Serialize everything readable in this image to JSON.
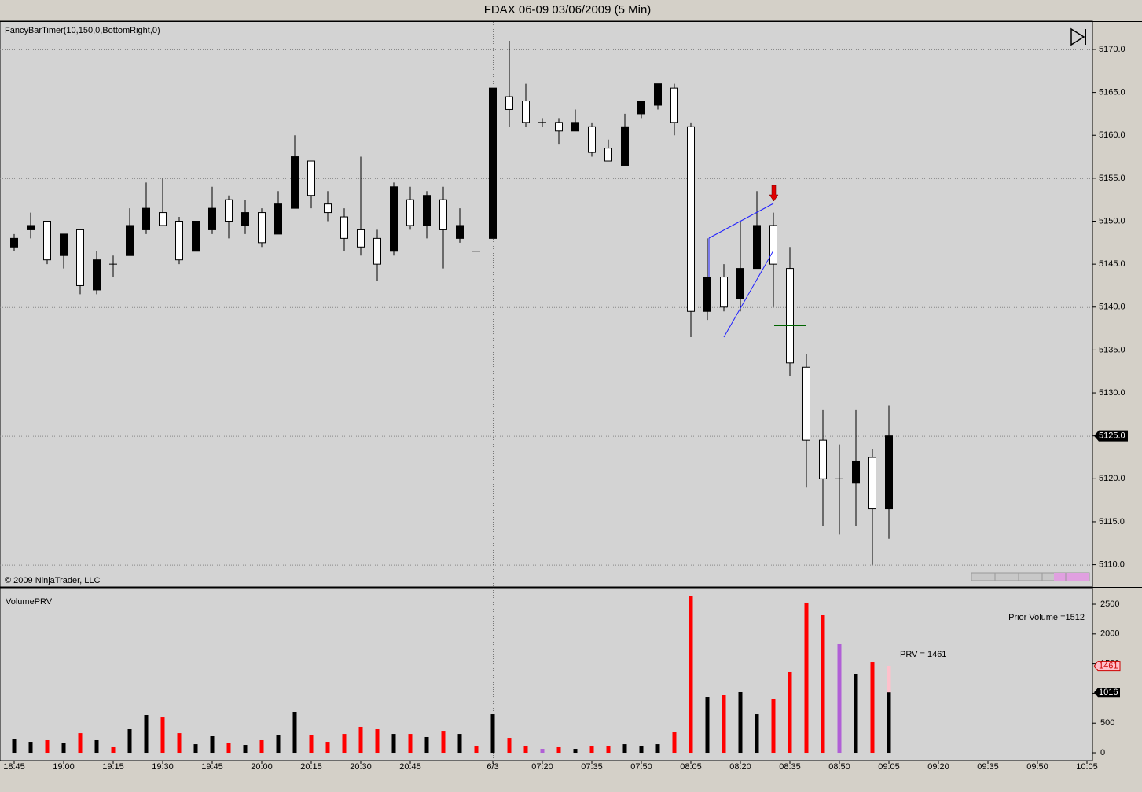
{
  "title": "FDAX 06-09  03/06/2009 (5 Min)",
  "indicator_label": "FancyBarTimer(10,150,0,BottomRight,0)",
  "copyright": "© 2009 NinjaTrader, LLC",
  "chart_data": [
    {
      "type": "candlestick",
      "categories": [
        "18:45",
        null,
        null,
        "19:00",
        null,
        null,
        "19:15",
        null,
        null,
        "19:30",
        null,
        null,
        "19:45",
        null,
        null,
        "20:00",
        null,
        null,
        "20:15",
        null,
        null,
        "20:30",
        null,
        null,
        "20:45",
        null,
        null,
        null,
        null,
        "6/3",
        null,
        null,
        "07:20",
        null,
        null,
        "07:35",
        null,
        null,
        "07:50",
        null,
        null,
        "08:05",
        null,
        null,
        "08:20",
        null,
        null,
        "08:35",
        null,
        null,
        "08:50",
        null,
        null,
        "09:05",
        null,
        null,
        "09:20",
        null,
        null,
        "09:35",
        null,
        null,
        "09:50",
        null,
        null,
        "10:05"
      ],
      "open": [
        5147,
        5149,
        5150,
        5146,
        5149,
        5142,
        5145,
        5146,
        5149,
        5151,
        5150,
        5146.5,
        5149,
        5152.5,
        5149.5,
        5151,
        5148.5,
        5151.5,
        5157,
        5152,
        5150.5,
        5149,
        5148,
        5146.5,
        5152.5,
        5149.5,
        5152.5,
        5148,
        5146.5,
        5148,
        5164.5,
        5164,
        5161.5,
        5161.5,
        5160.5,
        5161,
        5158.5,
        5156.5,
        5162.5,
        5163.5,
        5165.5,
        5161,
        5139.5,
        5143.5,
        5141,
        5144.5,
        5149.5,
        5144.5,
        5133,
        5124.5,
        5120,
        5119.5,
        5122.5,
        5116.5,
        null,
        null,
        null,
        null,
        null,
        null,
        null,
        null,
        null,
        null,
        null,
        null
      ],
      "high": [
        5148.5,
        5151,
        5150,
        5148.5,
        5149,
        5146.5,
        5146,
        5151.5,
        5154.5,
        5155,
        5150.5,
        5150,
        5154,
        5153,
        5152.5,
        5151.5,
        5153.5,
        5160,
        5157,
        5153.5,
        5151.5,
        5157.5,
        5149,
        5154.5,
        5154,
        5153.5,
        5154,
        5151.5,
        5146.5,
        5165.5,
        5171,
        5166,
        5162,
        5162,
        5163,
        5161.5,
        5159.5,
        5162.5,
        5164,
        5166,
        5166,
        5161.5,
        5148,
        5145,
        5150,
        5153.5,
        5151,
        5147,
        5134.5,
        5128,
        5124,
        5128,
        5123.5,
        5128.5,
        null,
        null,
        null,
        null,
        null,
        null,
        null,
        null,
        null,
        null,
        null,
        null
      ],
      "low": [
        5146.5,
        5148,
        5145,
        5144.5,
        5141.5,
        5141.5,
        5143.5,
        5146,
        5148.5,
        5149.5,
        5145,
        5146.5,
        5148.5,
        5148,
        5148.5,
        5147,
        5148.5,
        5151.5,
        5151.5,
        5150,
        5146.5,
        5146,
        5143,
        5146,
        5149,
        5148,
        5144.5,
        5147.5,
        5146.5,
        5148,
        5161,
        5161,
        5161,
        5159,
        5160.5,
        5157.5,
        5157,
        5156.5,
        5162,
        5163,
        5160,
        5136.5,
        5138.5,
        5139.5,
        5139.5,
        5144.5,
        5140,
        5132,
        5119,
        5114.5,
        5113.5,
        5114.5,
        5110,
        5113,
        null,
        null,
        null,
        null,
        null,
        null,
        null,
        null,
        null,
        null,
        null,
        null
      ],
      "close": [
        5148,
        5149.5,
        5145.5,
        5148.5,
        5142.5,
        5145.5,
        5145,
        5149.5,
        5151.5,
        5149.5,
        5145.5,
        5150,
        5151.5,
        5150,
        5151,
        5147.5,
        5152,
        5157.5,
        5153,
        5151,
        5148,
        5147,
        5145,
        5154,
        5149.5,
        5153,
        5149,
        5149.5,
        5146.5,
        5165.5,
        5163,
        5161.5,
        5161.5,
        5160.5,
        5161.5,
        5158,
        5157,
        5161,
        5164,
        5166,
        5161.5,
        5139.5,
        5143.5,
        5140,
        5144.5,
        5149.5,
        5145,
        5133.5,
        5124.5,
        5120,
        5120,
        5122,
        5116.5,
        5125,
        null,
        null,
        null,
        null,
        null,
        null,
        null,
        null,
        null,
        null,
        null,
        null
      ],
      "up_color": "#000000",
      "down_color": "#ffffff",
      "ylim": [
        5107.4,
        5173.2
      ],
      "yticks": [
        {
          "value": 5110,
          "label": "5110.0"
        },
        {
          "value": 5115,
          "label": "5115.0"
        },
        {
          "value": 5120,
          "label": "5120.0"
        },
        {
          "value": 5125,
          "label": "5125.0"
        },
        {
          "value": 5130,
          "label": "5130.0"
        },
        {
          "value": 5135,
          "label": "5135.0"
        },
        {
          "value": 5140,
          "label": "5140.0"
        },
        {
          "value": 5145,
          "label": "5145.0"
        },
        {
          "value": 5150,
          "label": "5150.0"
        },
        {
          "value": 5155,
          "label": "5155.0"
        },
        {
          "value": 5160,
          "label": "5160.0"
        },
        {
          "value": 5165,
          "label": "5165.0"
        },
        {
          "value": 5170,
          "label": "5170.0"
        }
      ],
      "last_price": {
        "value": 5125,
        "label": "5125.0"
      },
      "grid": true
    },
    {
      "type": "bar",
      "title": "VolumePRV",
      "values": [
        238,
        185,
        212,
        172,
        330,
        212,
        93,
        397,
        635,
        595,
        330,
        145,
        278,
        172,
        132,
        212,
        291,
        688,
        304,
        185,
        317,
        437,
        397,
        317,
        317,
        265,
        370,
        317,
        106,
        648,
        251,
        106,
        66,
        93,
        66,
        106,
        106,
        145,
        119,
        145,
        344,
        2633,
        939,
        966,
        1019,
        648,
        913,
        1363,
        2527,
        2315,
        1839,
        1323,
        1521,
        1016,
        null,
        null,
        null,
        null,
        null,
        null,
        null,
        null,
        null,
        null,
        null,
        null
      ],
      "colors": [
        "#000000",
        "#000000",
        "#ff0000",
        "#000000",
        "#ff0000",
        "#000000",
        "#ff0000",
        "#000000",
        "#000000",
        "#ff0000",
        "#ff0000",
        "#000000",
        "#000000",
        "#ff0000",
        "#000000",
        "#ff0000",
        "#000000",
        "#000000",
        "#ff0000",
        "#ff0000",
        "#ff0000",
        "#ff0000",
        "#ff0000",
        "#000000",
        "#ff0000",
        "#000000",
        "#ff0000",
        "#000000",
        "#ff0000",
        "#000000",
        "#ff0000",
        "#ff0000",
        "#b05fd6",
        "#ff0000",
        "#000000",
        "#ff0000",
        "#ff0000",
        "#000000",
        "#000000",
        "#000000",
        "#ff0000",
        "#ff0000",
        "#000000",
        "#ff0000",
        "#000000",
        "#000000",
        "#ff0000",
        "#ff0000",
        "#ff0000",
        "#ff0000",
        "#b05fd6",
        "#000000",
        "#ff0000",
        "#000000",
        null,
        null,
        null,
        null,
        null,
        null,
        null,
        null,
        null,
        null,
        null,
        null
      ],
      "prv": 1461,
      "prv_color": "#ffc0cb",
      "prv_label": "PRV = 1461",
      "prior_volume_label": "Prior Volume =1512",
      "ylim": [
        -132,
        2778
      ],
      "yticks": [
        0,
        500,
        1000,
        1500,
        2000,
        2500
      ]
    }
  ]
}
